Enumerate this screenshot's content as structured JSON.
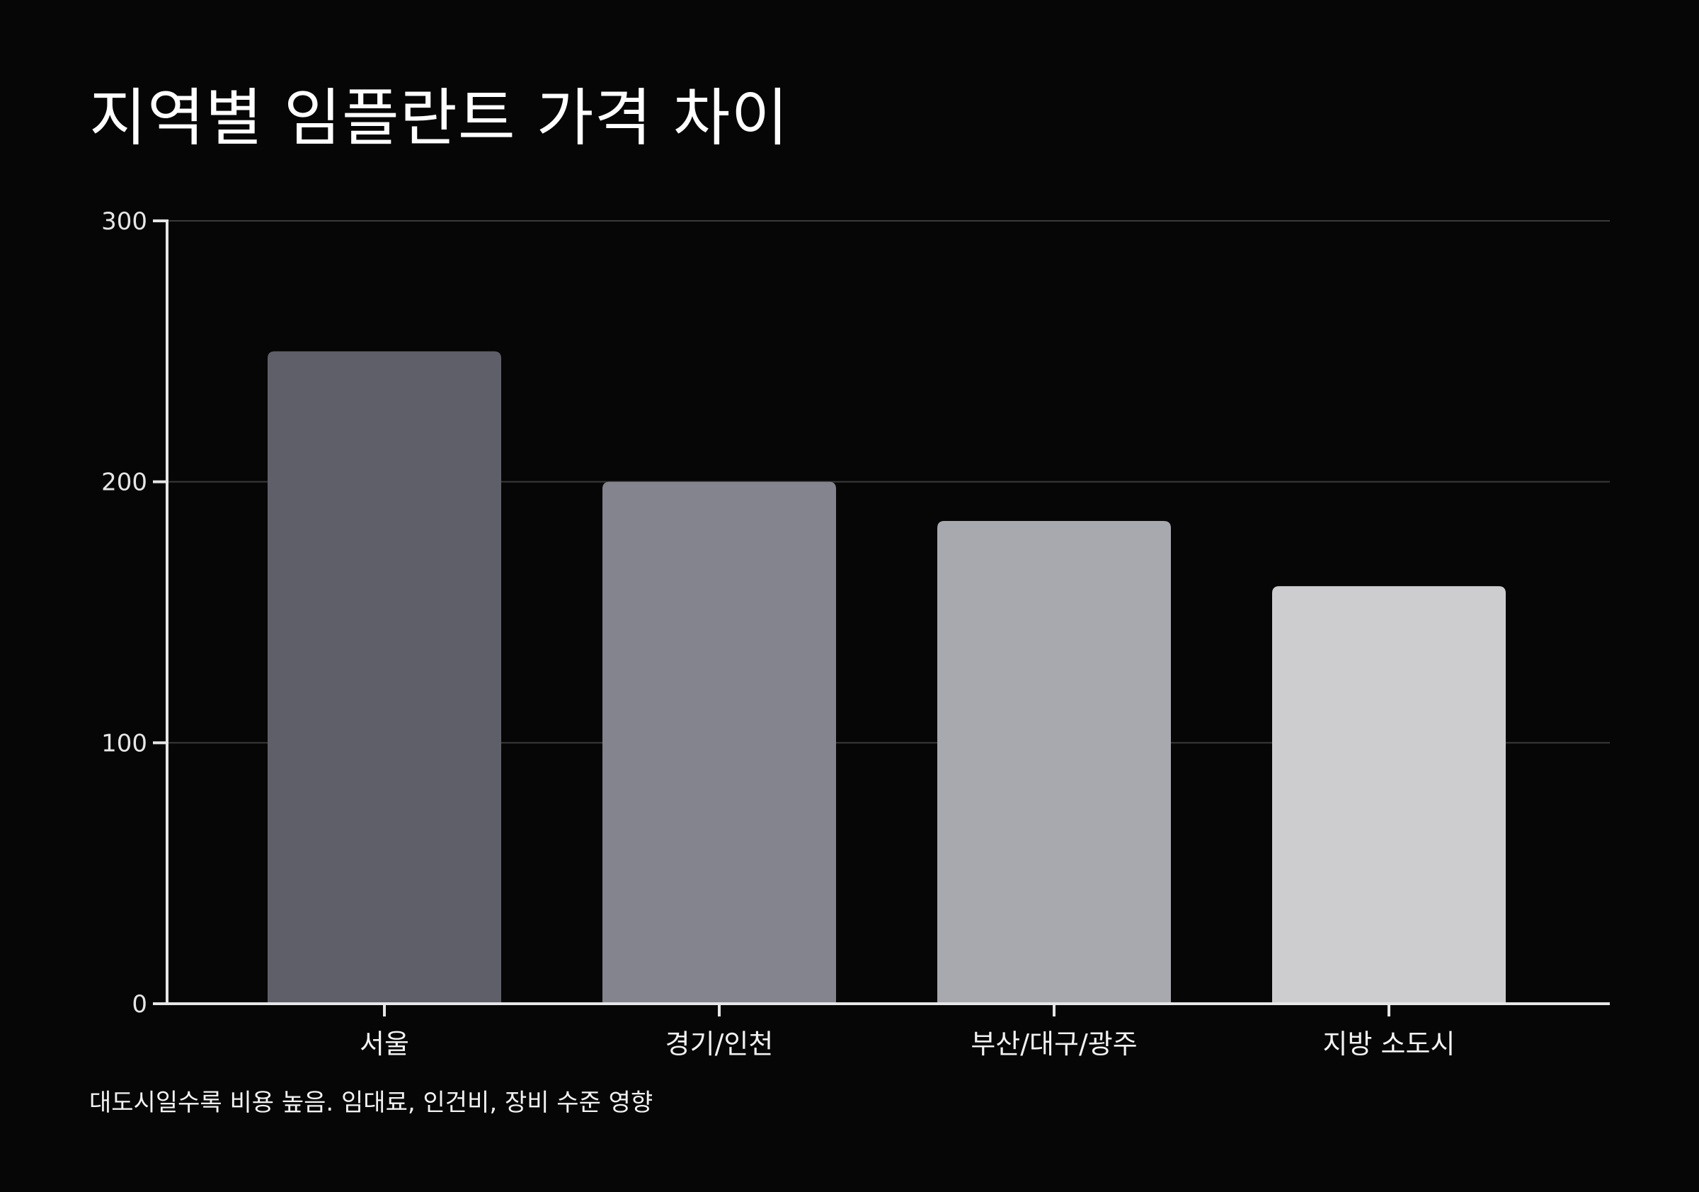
{
  "title": "지역별 임플란트 가격 차이",
  "footnote": "대도시일수록 비용 높음. 임대료, 인건비, 장비 수준 영향",
  "chart_data": {
    "type": "bar",
    "categories": [
      "서울",
      "경기/인천",
      "부산/대구/광주",
      "지방 소도시"
    ],
    "values": [
      250,
      200,
      185,
      160
    ],
    "ylim": [
      0,
      300
    ],
    "yticks": [
      0,
      100,
      200,
      300
    ],
    "grid": true,
    "colors": [
      "#5f5f69",
      "#84848e",
      "#a8a9ae",
      "#cdcdcf"
    ]
  }
}
